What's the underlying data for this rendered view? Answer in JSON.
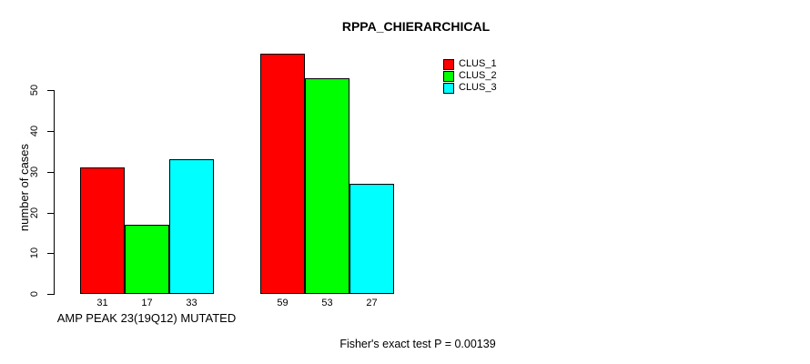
{
  "title": "RPPA_CHIERARCHICAL",
  "footer": "Fisher's exact test P = 0.00139",
  "chart_data": {
    "type": "bar",
    "title": "RPPA_CHIERARCHICAL",
    "ylabel": "number of cases",
    "xlabel": "",
    "categories": [
      "AMP PEAK 23(19Q12) MUTATED",
      ""
    ],
    "series": [
      {
        "name": "CLUS_1",
        "color": "#ff0000",
        "values": [
          31,
          59
        ]
      },
      {
        "name": "CLUS_2",
        "color": "#00ff00",
        "values": [
          17,
          53
        ]
      },
      {
        "name": "CLUS_3",
        "color": "#00ffff",
        "values": [
          33,
          27
        ]
      }
    ],
    "bar_value_labels": [
      [
        31,
        17,
        33
      ],
      [
        59,
        53,
        27
      ]
    ],
    "yticks": [
      0,
      10,
      20,
      30,
      40,
      50
    ],
    "ylim": [
      0,
      59
    ],
    "grid": false,
    "legend_position": "top-right",
    "annotation": "Fisher's exact test P = 0.00139"
  },
  "legend": {
    "items": [
      {
        "label": "CLUS_1",
        "color": "#ff0000"
      },
      {
        "label": "CLUS_2",
        "color": "#00ff00"
      },
      {
        "label": "CLUS_3",
        "color": "#00ffff"
      }
    ]
  }
}
